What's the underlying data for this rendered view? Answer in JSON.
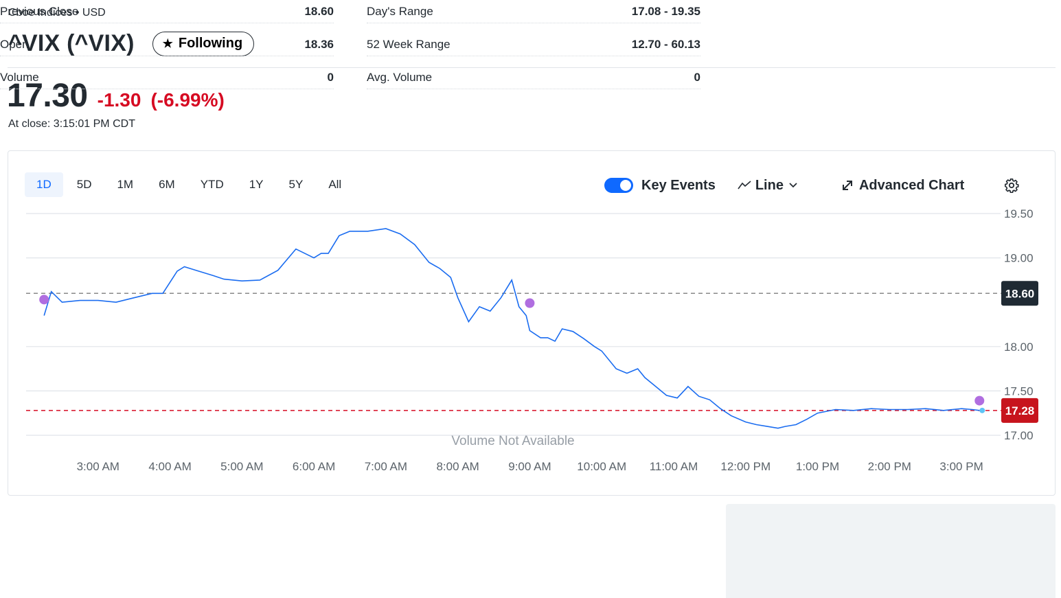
{
  "header": {
    "exchange": "Cboe Indices • USD",
    "title": "^VIX (^VIX)",
    "follow_label": "Following"
  },
  "quote": {
    "price": "17.30",
    "change": "-1.30",
    "change_pct": "(-6.99%)",
    "close_time": "At close: 3:15:01 PM CDT"
  },
  "chart_controls": {
    "ranges": [
      "1D",
      "5D",
      "1M",
      "6M",
      "YTD",
      "1Y",
      "5Y",
      "All"
    ],
    "active_range": "1D",
    "key_events_label": "Key Events",
    "key_events_on": true,
    "chart_type_label": "Line",
    "advanced_label": "Advanced Chart"
  },
  "chart_data": {
    "type": "line",
    "y_ticks": [
      "19.50",
      "19.00",
      "18.00",
      "17.50",
      "17.00"
    ],
    "ylim": [
      16.95,
      19.6
    ],
    "x_ticks": [
      "3:00 AM",
      "4:00 AM",
      "5:00 AM",
      "6:00 AM",
      "7:00 AM",
      "8:00 AM",
      "9:00 AM",
      "10:00 AM",
      "11:00 AM",
      "12:00 PM",
      "1:00 PM",
      "2:00 PM",
      "3:00 PM"
    ],
    "previous_close": 18.6,
    "previous_close_label": "18.60",
    "last_price": 17.28,
    "last_price_label": "17.28",
    "volume_note": "Volume Not Available",
    "series": [
      {
        "time": [
          2.25,
          2.35,
          2.5,
          2.75,
          3.0,
          3.25,
          3.5,
          3.75,
          3.9,
          4.1,
          4.2,
          4.4,
          4.6,
          4.75,
          5.0,
          5.25,
          5.5,
          5.75,
          6.0,
          6.1,
          6.2,
          6.35,
          6.5,
          6.75,
          7.0,
          7.2,
          7.4,
          7.6,
          7.75,
          7.9,
          8.0,
          8.15,
          8.3,
          8.45,
          8.6,
          8.75,
          8.85,
          8.95,
          9.0,
          9.15,
          9.25,
          9.35,
          9.45,
          9.6,
          9.75,
          9.9,
          10.0,
          10.2,
          10.35,
          10.5,
          10.6,
          10.75,
          10.9,
          11.05,
          11.2,
          11.35,
          11.5,
          11.65,
          11.8,
          12.0,
          12.15,
          12.3,
          12.45,
          12.55,
          12.7,
          12.85,
          13.0,
          13.25,
          13.5,
          13.75,
          14.0,
          14.25,
          14.5,
          14.75,
          15.0,
          15.15,
          15.25
        ],
        "values": [
          18.35,
          18.62,
          18.5,
          18.52,
          18.52,
          18.5,
          18.55,
          18.6,
          18.6,
          18.85,
          18.9,
          18.85,
          18.8,
          18.76,
          18.74,
          18.75,
          18.86,
          19.1,
          19.0,
          19.05,
          19.05,
          19.25,
          19.3,
          19.3,
          19.33,
          19.27,
          19.15,
          18.95,
          18.88,
          18.78,
          18.55,
          18.28,
          18.45,
          18.4,
          18.55,
          18.75,
          18.45,
          18.35,
          18.18,
          18.1,
          18.1,
          18.06,
          18.2,
          18.17,
          18.09,
          18.0,
          17.95,
          17.75,
          17.7,
          17.75,
          17.65,
          17.55,
          17.45,
          17.42,
          17.55,
          17.44,
          17.4,
          17.3,
          17.22,
          17.15,
          17.12,
          17.1,
          17.08,
          17.1,
          17.12,
          17.18,
          17.25,
          17.29,
          17.28,
          17.3,
          17.29,
          17.29,
          17.3,
          17.28,
          17.3,
          17.29,
          17.28
        ]
      }
    ],
    "key_events": [
      {
        "time": 2.25,
        "value": 18.53
      },
      {
        "time": 9.0,
        "value": 18.49
      },
      {
        "time": 15.25,
        "value": 17.39
      }
    ],
    "grid": true,
    "colors": {
      "line": "#1a6cf0",
      "prev_close": "#888888",
      "last": "#d60a22",
      "event": "#b06ee0",
      "grid": "#e0e4e9"
    }
  },
  "stats": {
    "left": [
      {
        "label": "Previous Close",
        "value": "18.60"
      },
      {
        "label": "Open",
        "value": "18.36"
      },
      {
        "label": "Volume",
        "value": "0"
      }
    ],
    "right": [
      {
        "label": "Day's Range",
        "value": "17.08 - 19.35"
      },
      {
        "label": "52 Week Range",
        "value": "12.70 - 60.13"
      },
      {
        "label": "Avg. Volume",
        "value": "0"
      }
    ]
  }
}
